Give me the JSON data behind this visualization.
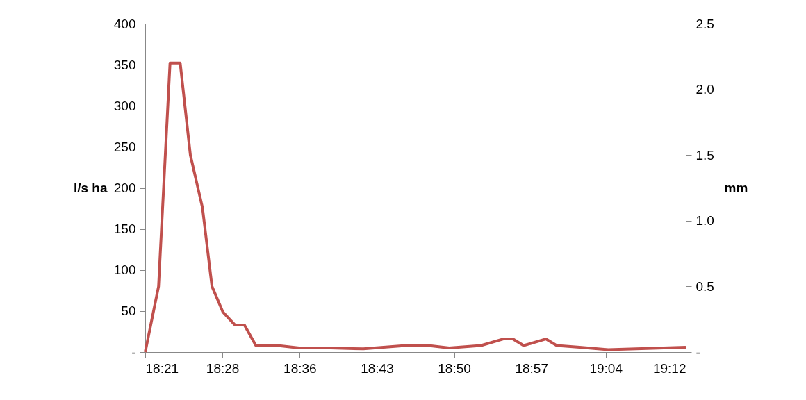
{
  "chart_data": {
    "type": "line",
    "x": [
      18.35,
      18.371,
      18.389,
      18.405,
      18.421,
      18.44,
      18.455,
      18.472,
      18.491,
      18.506,
      18.524,
      18.558,
      18.592,
      18.642,
      18.693,
      18.76,
      18.795,
      18.828,
      18.878,
      18.913,
      18.928,
      18.945,
      18.98,
      18.997,
      19.033,
      19.078,
      19.2
    ],
    "series": [
      {
        "color": "#c0504d",
        "values": [
          0,
          80,
          352,
          352,
          240,
          176,
          80,
          49,
          33,
          33,
          8,
          8,
          5,
          5,
          4,
          8,
          8,
          5,
          8,
          16,
          16,
          8,
          16,
          8,
          6,
          3,
          6
        ]
      }
    ],
    "ylabel": "l/s ha",
    "y2label": "mm",
    "xlim": [
      18.35,
      19.2
    ],
    "xticks": [
      {
        "value": 18.35,
        "label": "18:21"
      },
      {
        "value": 18.4714,
        "label": "18:28"
      },
      {
        "value": 18.5929,
        "label": "18:36"
      },
      {
        "value": 18.7143,
        "label": "18:43"
      },
      {
        "value": 18.8357,
        "label": "18:50"
      },
      {
        "value": 18.9571,
        "label": "18:57"
      },
      {
        "value": 19.074,
        "label": "19:04"
      },
      {
        "value": 19.2,
        "label": "19:12"
      }
    ],
    "ylim": [
      0,
      400
    ],
    "yticks": [
      {
        "value": 0,
        "label": "-"
      },
      50,
      100,
      150,
      200,
      250,
      300,
      350,
      400
    ],
    "y2lim": [
      0,
      2.5
    ],
    "y2ticks": [
      {
        "value": 0,
        "label": "-"
      },
      {
        "value": 0.5,
        "label": "0.5"
      },
      {
        "value": 1,
        "label": "1.0"
      },
      {
        "value": 1.5,
        "label": "1.5"
      },
      {
        "value": 2,
        "label": "2.0"
      },
      {
        "value": 2.5,
        "label": "2.5"
      }
    ],
    "grid": false,
    "marker": "none",
    "line_style": "solid"
  }
}
